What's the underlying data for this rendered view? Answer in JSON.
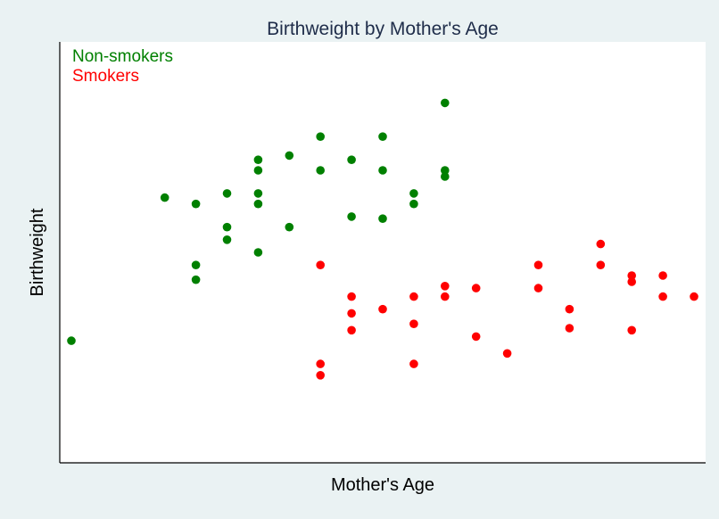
{
  "chart_data": {
    "type": "scatter",
    "title": "Birthweight by Mother's Age",
    "xlabel": "Mother's Age",
    "ylabel": "Birthweight",
    "xlim": [
      0,
      20.5
    ],
    "ylim": [
      0,
      100
    ],
    "grid": false,
    "ticks_shown": false,
    "legend_position": "top-left",
    "series": [
      {
        "name": "Non-smokers",
        "color": "#008000",
        "points": [
          {
            "x": 0,
            "y": 29
          },
          {
            "x": 3,
            "y": 63
          },
          {
            "x": 4,
            "y": 61.5
          },
          {
            "x": 4,
            "y": 47
          },
          {
            "x": 4,
            "y": 43.5
          },
          {
            "x": 5,
            "y": 64
          },
          {
            "x": 5,
            "y": 56
          },
          {
            "x": 5,
            "y": 53
          },
          {
            "x": 6,
            "y": 72
          },
          {
            "x": 6,
            "y": 69.5
          },
          {
            "x": 6,
            "y": 64
          },
          {
            "x": 6,
            "y": 61.5
          },
          {
            "x": 6,
            "y": 50
          },
          {
            "x": 7,
            "y": 73
          },
          {
            "x": 7,
            "y": 56
          },
          {
            "x": 8,
            "y": 77.5
          },
          {
            "x": 8,
            "y": 69.5
          },
          {
            "x": 9,
            "y": 72
          },
          {
            "x": 9,
            "y": 58.5
          },
          {
            "x": 10,
            "y": 77.5
          },
          {
            "x": 10,
            "y": 69.5
          },
          {
            "x": 10,
            "y": 58
          },
          {
            "x": 11,
            "y": 64
          },
          {
            "x": 11,
            "y": 61.5
          },
          {
            "x": 12,
            "y": 85.5
          },
          {
            "x": 12,
            "y": 69.5
          },
          {
            "x": 12,
            "y": 68
          }
        ]
      },
      {
        "name": "Smokers",
        "color": "#ff0000",
        "points": [
          {
            "x": 8,
            "y": 47
          },
          {
            "x": 8,
            "y": 23.5
          },
          {
            "x": 8,
            "y": 20.8
          },
          {
            "x": 9,
            "y": 39.5
          },
          {
            "x": 9,
            "y": 35.5
          },
          {
            "x": 9,
            "y": 31.5
          },
          {
            "x": 10,
            "y": 36.5
          },
          {
            "x": 11,
            "y": 39.5
          },
          {
            "x": 11,
            "y": 33
          },
          {
            "x": 11,
            "y": 23.5
          },
          {
            "x": 12,
            "y": 42
          },
          {
            "x": 12,
            "y": 39.5
          },
          {
            "x": 13,
            "y": 41.5
          },
          {
            "x": 13,
            "y": 30
          },
          {
            "x": 14,
            "y": 26
          },
          {
            "x": 15,
            "y": 47
          },
          {
            "x": 15,
            "y": 41.5
          },
          {
            "x": 16,
            "y": 36.5
          },
          {
            "x": 16,
            "y": 32
          },
          {
            "x": 17,
            "y": 52
          },
          {
            "x": 17,
            "y": 47
          },
          {
            "x": 18,
            "y": 44.5
          },
          {
            "x": 18,
            "y": 43
          },
          {
            "x": 18,
            "y": 31.5
          },
          {
            "x": 19,
            "y": 44.5
          },
          {
            "x": 19,
            "y": 39.5
          },
          {
            "x": 20,
            "y": 39.5
          }
        ]
      }
    ]
  }
}
